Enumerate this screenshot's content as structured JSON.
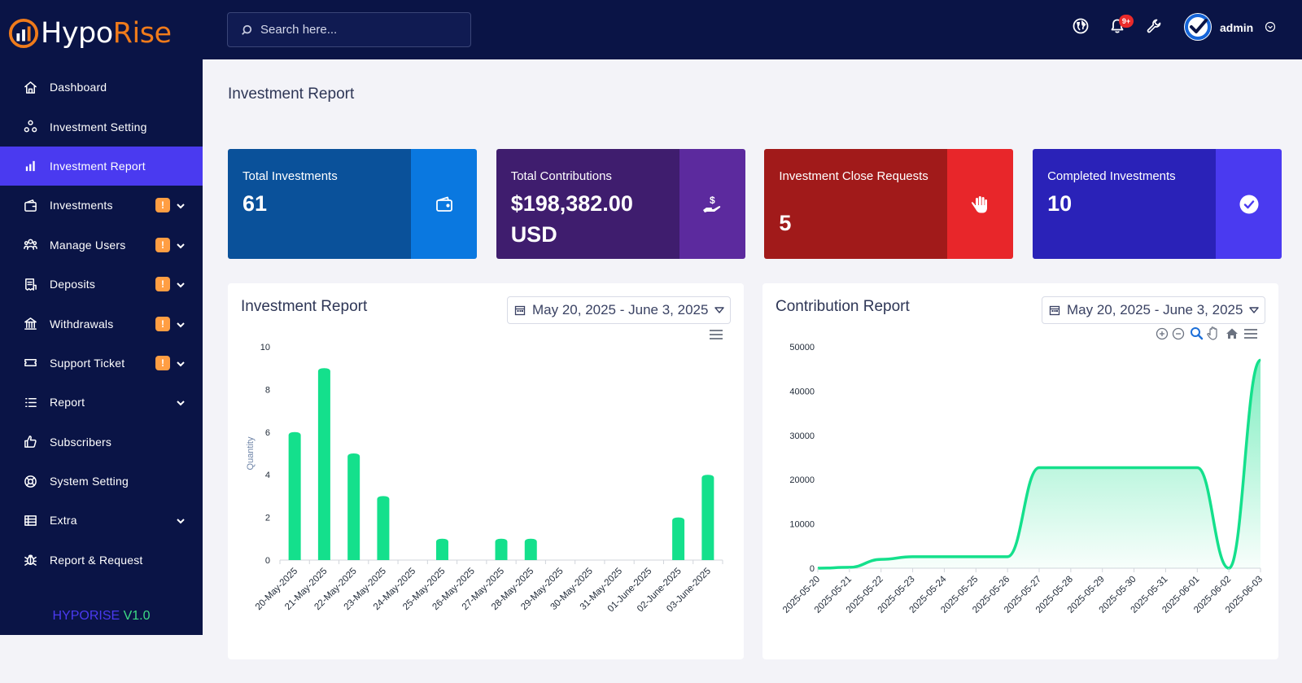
{
  "app": {
    "name_part1": "Hypo",
    "name_part2": "Rise",
    "version_name": "HYPORISE",
    "version_number": "V1.0"
  },
  "colors": {
    "sidebar": "#0a1446",
    "accent": "#4a3af0",
    "badge": "#ff9e43",
    "chart": "#14e08c",
    "brand_orange": "#f07b1b"
  },
  "sidebar": {
    "items": [
      {
        "label": "Dashboard",
        "icon": "home-icon",
        "badge": "",
        "chevron": false,
        "active": false
      },
      {
        "label": "Investment Setting",
        "icon": "nodes-icon",
        "badge": "",
        "chevron": false,
        "active": false
      },
      {
        "label": "Investment Report",
        "icon": "bar-chart-icon",
        "badge": "",
        "chevron": false,
        "active": true
      },
      {
        "label": "Investments",
        "icon": "wallet-icon",
        "badge": "!",
        "chevron": true,
        "active": false
      },
      {
        "label": "Manage Users",
        "icon": "users-icon",
        "badge": "!",
        "chevron": true,
        "active": false
      },
      {
        "label": "Deposits",
        "icon": "receipt-icon",
        "badge": "!",
        "chevron": true,
        "active": false
      },
      {
        "label": "Withdrawals",
        "icon": "bank-icon",
        "badge": "!",
        "chevron": true,
        "active": false
      },
      {
        "label": "Support Ticket",
        "icon": "ticket-icon",
        "badge": "!",
        "chevron": true,
        "active": false
      },
      {
        "label": "Report",
        "icon": "list-icon",
        "badge": "",
        "chevron": true,
        "active": false
      },
      {
        "label": "Subscribers",
        "icon": "thumbs-up-icon",
        "badge": "",
        "chevron": false,
        "active": false
      },
      {
        "label": "System Setting",
        "icon": "lifebuoy-icon",
        "badge": "",
        "chevron": false,
        "active": false
      },
      {
        "label": "Extra",
        "icon": "table-icon",
        "badge": "",
        "chevron": true,
        "active": false
      },
      {
        "label": "Report & Request",
        "icon": "bug-icon",
        "badge": "",
        "chevron": false,
        "active": false
      }
    ]
  },
  "header": {
    "search_placeholder": "Search here...",
    "notification_count": "9+",
    "user_name": "admin"
  },
  "page": {
    "title": "Investment Report"
  },
  "cards": [
    {
      "label": "Total Investments",
      "value": "61",
      "icon": "wallet-icon",
      "color_left": "#0a519a",
      "color_right": "#0a78e0"
    },
    {
      "label": "Total Contributions",
      "value": "$198,382.00 USD",
      "icon": "hand-coin-icon",
      "color_left": "#3f1d6e",
      "color_right": "#5c2a9e"
    },
    {
      "label": "Investment Close Requests",
      "value": "5",
      "icon": "hand-stop-icon",
      "color_left": "#a11a1a",
      "color_right": "#e8262a"
    },
    {
      "label": "Completed Investments",
      "value": "10",
      "icon": "check-circle-icon",
      "color_left": "#2a22b8",
      "color_right": "#4a3af0"
    }
  ],
  "panels": {
    "investment": {
      "title": "Investment Report",
      "date_range": "May 20, 2025 - June 3, 2025"
    },
    "contribution": {
      "title": "Contribution Report",
      "date_range": "May 20, 2025 - June 3, 2025"
    }
  },
  "chart_data": [
    {
      "type": "bar",
      "title": "Investment Report",
      "ylabel": "Quantity",
      "xlabel": "",
      "categories": [
        "20-May-2025",
        "21-May-2025",
        "22-May-2025",
        "23-May-2025",
        "24-May-2025",
        "25-May-2025",
        "26-May-2025",
        "27-May-2025",
        "28-May-2025",
        "29-May-2025",
        "30-May-2025",
        "31-May-2025",
        "01-June-2025",
        "02-June-2025",
        "03-June-2025"
      ],
      "values": [
        6,
        9,
        5,
        3,
        0,
        1,
        0,
        1,
        1,
        0,
        0,
        0,
        0,
        2,
        4
      ],
      "ylim": [
        0,
        10
      ],
      "yticks": [
        0,
        2,
        4,
        6,
        8,
        10
      ],
      "grid": false
    },
    {
      "type": "area",
      "title": "Contribution Report",
      "ylabel": "",
      "xlabel": "",
      "x": [
        "2025-05-20",
        "2025-05-21",
        "2025-05-22",
        "2025-05-23",
        "2025-05-24",
        "2025-05-25",
        "2025-05-26",
        "2025-05-27",
        "2025-05-28",
        "2025-05-29",
        "2025-05-30",
        "2025-05-31",
        "2025-06-01",
        "2025-06-02",
        "2025-06-03"
      ],
      "values": [
        0,
        200,
        2000,
        2600,
        2600,
        2600,
        2600,
        22700,
        22700,
        22700,
        22700,
        22700,
        22700,
        0,
        47000
      ],
      "ylim": [
        0,
        50000
      ],
      "yticks": [
        0,
        10000,
        20000,
        30000,
        40000,
        50000
      ],
      "grid": false
    }
  ]
}
